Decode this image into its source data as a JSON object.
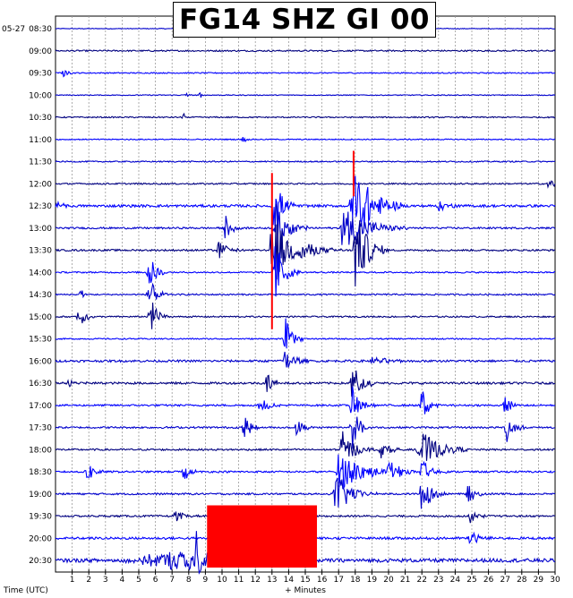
{
  "chart_data": {
    "type": "helicorder",
    "title": "FG14 SHZ GI 00",
    "date_label": "05-27",
    "ylabel": "Time (UTC)",
    "xlabel": "+ Minutes",
    "x_ticks": [
      1,
      2,
      3,
      4,
      5,
      6,
      7,
      8,
      9,
      10,
      11,
      12,
      13,
      14,
      15,
      16,
      17,
      18,
      19,
      20,
      21,
      22,
      23,
      24,
      25,
      26,
      27,
      28,
      29,
      30
    ],
    "xlim": [
      0,
      30
    ],
    "grid": true,
    "line_colors": [
      "#0000cc",
      "#000080",
      "#0000ff"
    ],
    "clip_color": "#ff0000",
    "rows": [
      {
        "time": "08:30",
        "noise": 0.4,
        "events": []
      },
      {
        "time": "09:00",
        "noise": 0.8,
        "events": []
      },
      {
        "time": "09:30",
        "noise": 0.6,
        "events": [
          {
            "minute": 0.5,
            "amp": 5,
            "dur": 0.6
          }
        ]
      },
      {
        "time": "10:00",
        "noise": 0.5,
        "events": [
          {
            "minute": 7.8,
            "amp": 5,
            "dur": 0.3
          },
          {
            "minute": 8.7,
            "amp": 4,
            "dur": 0.3
          }
        ]
      },
      {
        "time": "10:30",
        "noise": 0.7,
        "events": [
          {
            "minute": 7.7,
            "amp": 5,
            "dur": 0.3
          }
        ]
      },
      {
        "time": "11:00",
        "noise": 0.6,
        "events": [
          {
            "minute": 11.3,
            "amp": 6,
            "dur": 0.3
          }
        ]
      },
      {
        "time": "11:30",
        "noise": 0.7,
        "events": []
      },
      {
        "time": "12:00",
        "noise": 0.8,
        "events": [
          {
            "minute": 29.6,
            "amp": 8,
            "dur": 1.3
          }
        ]
      },
      {
        "time": "12:30",
        "noise": 1.4,
        "events": [
          {
            "minute": 0.1,
            "amp": 5,
            "dur": 1.0
          },
          {
            "minute": 13.1,
            "amp": 34,
            "dur": 1.5
          },
          {
            "minute": 17.8,
            "amp": 58,
            "dur": 3.0
          },
          {
            "minute": 23.0,
            "amp": 6,
            "dur": 1.8
          }
        ]
      },
      {
        "time": "13:00",
        "noise": 1.0,
        "events": [
          {
            "minute": 10.2,
            "amp": 15,
            "dur": 1.2
          },
          {
            "minute": 13.2,
            "amp": 30,
            "dur": 2.0
          },
          {
            "minute": 17.2,
            "amp": 26,
            "dur": 4.0
          }
        ]
      },
      {
        "time": "13:30",
        "noise": 1.0,
        "events": [
          {
            "minute": 9.8,
            "amp": 12,
            "dur": 1.5
          },
          {
            "minute": 13.0,
            "amp": 48,
            "dur": 2.5
          },
          {
            "minute": 14.8,
            "amp": 16,
            "dur": 2.5
          },
          {
            "minute": 18.0,
            "amp": 50,
            "dur": 2.0
          }
        ]
      },
      {
        "time": "14:00",
        "noise": 0.8,
        "events": [
          {
            "minute": 5.6,
            "amp": 22,
            "dur": 1.2
          },
          {
            "minute": 13.2,
            "amp": 38,
            "dur": 1.5
          }
        ]
      },
      {
        "time": "14:30",
        "noise": 0.8,
        "events": [
          {
            "minute": 1.5,
            "amp": 8,
            "dur": 0.6
          },
          {
            "minute": 5.6,
            "amp": 20,
            "dur": 1.2
          }
        ]
      },
      {
        "time": "15:00",
        "noise": 0.8,
        "events": [
          {
            "minute": 1.4,
            "amp": 16,
            "dur": 1.0
          },
          {
            "minute": 5.7,
            "amp": 28,
            "dur": 1.0
          }
        ]
      },
      {
        "time": "15:30",
        "noise": 0.7,
        "events": [
          {
            "minute": 13.8,
            "amp": 24,
            "dur": 1.2
          }
        ]
      },
      {
        "time": "16:00",
        "noise": 1.2,
        "events": [
          {
            "minute": 13.8,
            "amp": 16,
            "dur": 1.5
          },
          {
            "minute": 19.0,
            "amp": 4,
            "dur": 4.0
          }
        ]
      },
      {
        "time": "16:30",
        "noise": 1.2,
        "events": [
          {
            "minute": 0.8,
            "amp": 5,
            "dur": 1.5
          },
          {
            "minute": 12.7,
            "amp": 14,
            "dur": 1.2
          },
          {
            "minute": 17.8,
            "amp": 26,
            "dur": 1.5
          }
        ]
      },
      {
        "time": "17:00",
        "noise": 1.0,
        "events": [
          {
            "minute": 12.3,
            "amp": 14,
            "dur": 1.2
          },
          {
            "minute": 17.8,
            "amp": 22,
            "dur": 1.5
          },
          {
            "minute": 22.0,
            "amp": 22,
            "dur": 1.2
          },
          {
            "minute": 27.0,
            "amp": 12,
            "dur": 1.0
          }
        ]
      },
      {
        "time": "17:30",
        "noise": 1.0,
        "events": [
          {
            "minute": 11.3,
            "amp": 18,
            "dur": 1.0
          },
          {
            "minute": 14.5,
            "amp": 14,
            "dur": 1.0
          },
          {
            "minute": 17.8,
            "amp": 26,
            "dur": 1.2
          },
          {
            "minute": 27.1,
            "amp": 18,
            "dur": 1.2
          }
        ]
      },
      {
        "time": "18:00",
        "noise": 1.0,
        "events": [
          {
            "minute": 17.2,
            "amp": 22,
            "dur": 2.0
          },
          {
            "minute": 19.5,
            "amp": 10,
            "dur": 1.5
          },
          {
            "minute": 21.8,
            "amp": 26,
            "dur": 3.0
          }
        ]
      },
      {
        "time": "18:30",
        "noise": 1.0,
        "events": [
          {
            "minute": 1.9,
            "amp": 16,
            "dur": 1.0
          },
          {
            "minute": 7.7,
            "amp": 14,
            "dur": 1.0
          },
          {
            "minute": 17.0,
            "amp": 24,
            "dur": 4.0
          },
          {
            "minute": 20.0,
            "amp": 20,
            "dur": 1.5
          },
          {
            "minute": 22.0,
            "amp": 14,
            "dur": 1.5
          }
        ]
      },
      {
        "time": "19:00",
        "noise": 1.0,
        "events": [
          {
            "minute": 16.8,
            "amp": 26,
            "dur": 2.5
          },
          {
            "minute": 22.0,
            "amp": 24,
            "dur": 1.5
          },
          {
            "minute": 24.8,
            "amp": 14,
            "dur": 1.2
          }
        ]
      },
      {
        "time": "19:30",
        "noise": 1.0,
        "events": [
          {
            "minute": 7.2,
            "amp": 6,
            "dur": 1.5
          },
          {
            "minute": 24.9,
            "amp": 8,
            "dur": 1.2
          }
        ]
      },
      {
        "time": "20:00",
        "noise": 1.3,
        "events": [
          {
            "minute": 24.9,
            "amp": 10,
            "dur": 1.5
          }
        ]
      },
      {
        "time": "20:30",
        "noise": 2.0,
        "events": [
          {
            "minute": 8.5,
            "amp": 28,
            "dur": 1.0
          }
        ]
      }
    ],
    "clipped_blocks": [
      {
        "start_minute": 9.1,
        "end_minute": 15.7,
        "row_from": 22,
        "row_to": 24
      }
    ],
    "clipped_spikes": [
      {
        "minute": 13.0,
        "row_from": 7,
        "row_to": 13
      },
      {
        "minute": 17.9,
        "row_from": 6,
        "row_to": 7
      }
    ]
  }
}
